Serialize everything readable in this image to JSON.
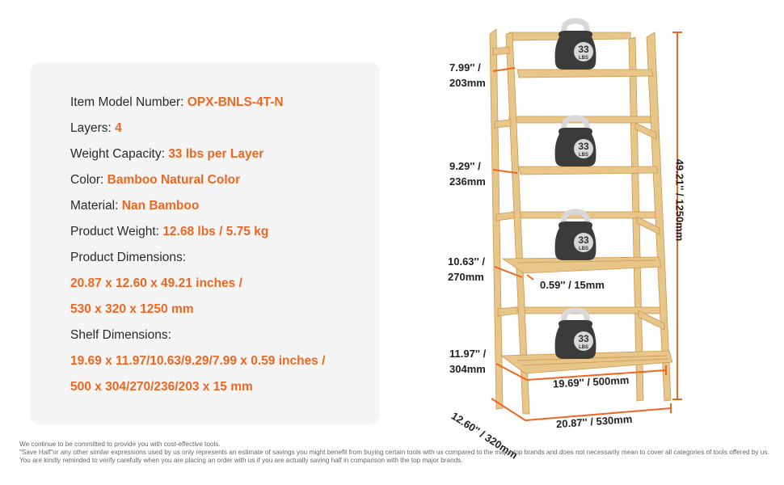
{
  "specs": {
    "model": {
      "label": "Item Model Number: ",
      "value": "OPX-BNLS-4T-N"
    },
    "layers": {
      "label": "Layers: ",
      "value": "4"
    },
    "capacity": {
      "label": "Weight Capacity: ",
      "value": "33 lbs per Layer"
    },
    "color": {
      "label": "Color: ",
      "value": "Bamboo Natural Color"
    },
    "material": {
      "label": "Material: ",
      "value": "Nan Bamboo"
    },
    "weight": {
      "label": "Product Weight: ",
      "value": "12.68 lbs / 5.75 kg"
    },
    "product_dimensions": {
      "label": "Product Dimensions:",
      "line1": "20.87 x 12.60 x 49.21 inches /",
      "line2": "530 x 320 x 1250 mm"
    },
    "shelf_dimensions": {
      "label": "Shelf Dimensions:",
      "line1": "19.69 x 11.97/10.63/9.29/7.99 x 0.59 inches /",
      "line2": "500 x 304/270/236/203 x 15 mm"
    }
  },
  "diagram": {
    "kettlebell_weight": "33",
    "kettlebell_unit": "LBS",
    "depth_1": {
      "in": "7.99'' /",
      "mm": "203mm"
    },
    "depth_2": {
      "in": "9.29'' /",
      "mm": "236mm"
    },
    "depth_3": {
      "in": "10.63'' /",
      "mm": "270mm"
    },
    "depth_4": {
      "in": "11.97'' /",
      "mm": "304mm"
    },
    "thickness": "0.59'' / 15mm",
    "shelf_width": "19.69'' / 500mm",
    "overall_depth": "12.60'' / 320mm",
    "overall_width": "20.87'' / 530mm",
    "height": "49.21'' / 1250mm",
    "accent_color": "#f0661f",
    "wood_color": "#e8c589"
  },
  "footer": {
    "line1": "We continue to be committed to provide you with cost-effective tools.",
    "line2": "\"Save Half\"or any other similar expressions used by us only represents an estimate of savings you might benefit from buying certain tools with us compared to the major top brands and does not necessarily mean to cover all categories of tools offered by us.",
    "line3": "You are kindly reminded to verify carefully when you are placing an order with us if you are actually saving half in comparison with the top major brands."
  }
}
